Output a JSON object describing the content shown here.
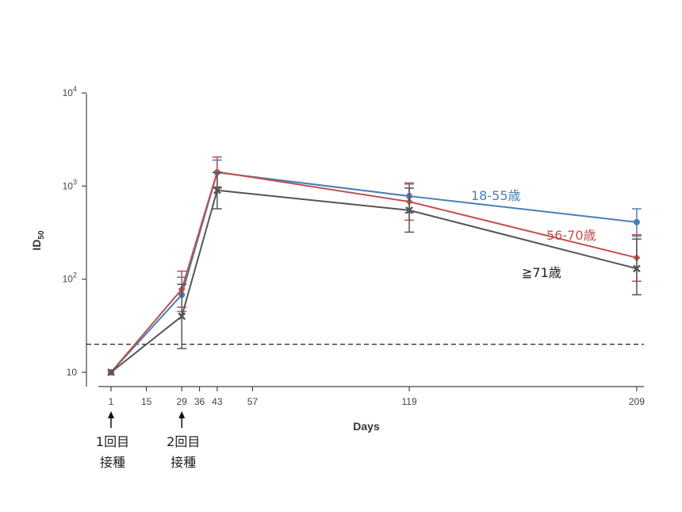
{
  "chart_data": {
    "type": "line",
    "xlabel": "Days",
    "ylabel_main": "ID",
    "ylabel_sub": "50",
    "y_scale": "log",
    "ylim": [
      10,
      10000
    ],
    "y_ticks": [
      {
        "value": 10,
        "base": "10",
        "exp": ""
      },
      {
        "value": 100,
        "base": "10",
        "exp": "2"
      },
      {
        "value": 1000,
        "base": "10",
        "exp": "3"
      },
      {
        "value": 10000,
        "base": "10",
        "exp": "4"
      }
    ],
    "x_ticks": [
      1,
      15,
      29,
      36,
      43,
      57,
      119,
      209
    ],
    "threshold": 20,
    "series": [
      {
        "name": "18-55歳",
        "color": "#4a7fb5",
        "marker": "circle",
        "points": [
          {
            "x": 1,
            "y": 10,
            "lo": 10,
            "hi": 10
          },
          {
            "x": 29,
            "y": 68,
            "lo": 45,
            "hi": 105
          },
          {
            "x": 43,
            "y": 1400,
            "lo": 950,
            "hi": 1900
          },
          {
            "x": 119,
            "y": 780,
            "lo": 520,
            "hi": 1050
          },
          {
            "x": 209,
            "y": 410,
            "lo": 290,
            "hi": 570
          }
        ]
      },
      {
        "name": "56-70歳",
        "color": "#c0504d",
        "marker": "diamond",
        "points": [
          {
            "x": 1,
            "y": 10,
            "lo": 10,
            "hi": 10
          },
          {
            "x": 29,
            "y": 78,
            "lo": 50,
            "hi": 122
          },
          {
            "x": 43,
            "y": 1420,
            "lo": 980,
            "hi": 2050
          },
          {
            "x": 119,
            "y": 680,
            "lo": 430,
            "hi": 1080
          },
          {
            "x": 209,
            "y": 170,
            "lo": 95,
            "hi": 300
          }
        ]
      },
      {
        "name": "≧71歳",
        "color": "#555555",
        "marker": "x",
        "points": [
          {
            "x": 1,
            "y": 10,
            "lo": 10,
            "hi": 10
          },
          {
            "x": 29,
            "y": 40,
            "lo": 18,
            "hi": 88
          },
          {
            "x": 43,
            "y": 900,
            "lo": 570,
            "hi": 1400
          },
          {
            "x": 119,
            "y": 550,
            "lo": 320,
            "hi": 950
          },
          {
            "x": 209,
            "y": 130,
            "lo": 68,
            "hi": 270
          }
        ]
      }
    ],
    "doses": [
      {
        "x": 1,
        "line1": "1回目",
        "line2": "接種"
      },
      {
        "x": 29,
        "line1": "2回目",
        "line2": "接種"
      }
    ]
  }
}
